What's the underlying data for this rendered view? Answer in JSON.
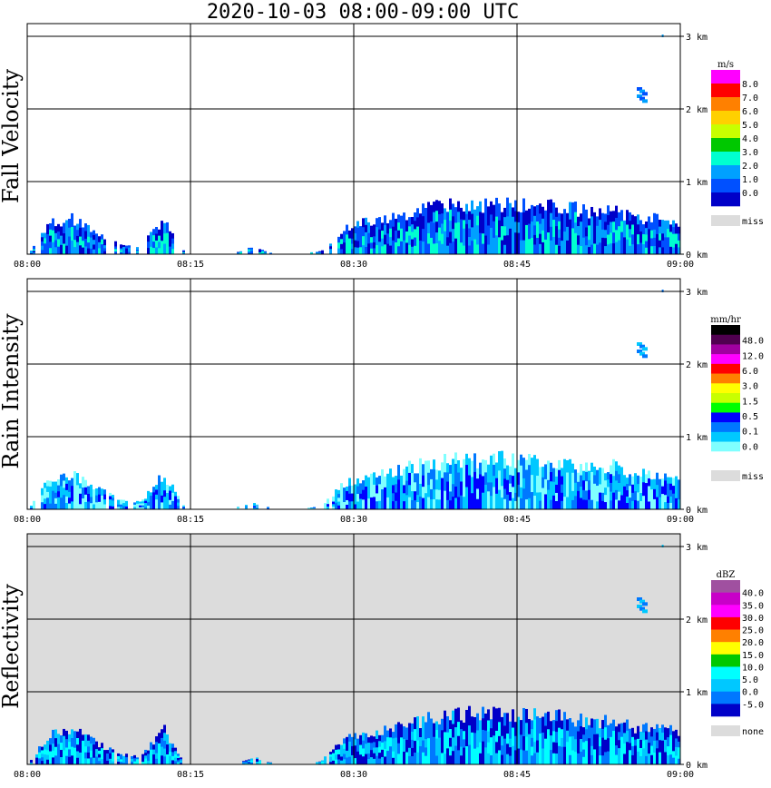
{
  "title": "2020-10-03   08:00-09:00 UTC",
  "chart_data": [
    {
      "type": "heatmap",
      "ylabel": "Fall Velocity",
      "x_ticks": [
        "08:00",
        "08:15",
        "08:30",
        "08:45",
        "09:00"
      ],
      "y_ticks": [
        "0 km",
        "1 km",
        "2 km",
        "3 km"
      ],
      "xlim": [
        "08:00",
        "09:00"
      ],
      "ylim_km": [
        0,
        3.0
      ],
      "background": "#ffffff",
      "colorbar": {
        "unit": "m/s",
        "labels": [
          "8.0",
          "7.0",
          "6.0",
          "5.0",
          "4.0",
          "3.0",
          "2.0",
          "1.0",
          "0.0"
        ],
        "colors": [
          "#ff00ff",
          "#ff0000",
          "#ff8000",
          "#ffd000",
          "#c8ff00",
          "#00c800",
          "#00ffd0",
          "#00a0ff",
          "#0050ff",
          "#0000c8"
        ],
        "miss_label": "miss",
        "miss_color": "#dcdcdc"
      },
      "echo": {
        "boundary_top_km": [
          0.0,
          0.45,
          0.5,
          0.3,
          0.15,
          0.1,
          0.5,
          0.0,
          0.0,
          0.0,
          0.1,
          0.0,
          0.0,
          0.05,
          0.35,
          0.45,
          0.5,
          0.6,
          0.65,
          0.7,
          0.7,
          0.7,
          0.7,
          0.7,
          0.65,
          0.6,
          0.6,
          0.5,
          0.5,
          0.45
        ],
        "dominant_colors": [
          "#0000c8",
          "#0050ff",
          "#00a0ff",
          "#00ffd0"
        ],
        "cell_top_km": [
          2.3,
          2.1
        ]
      }
    },
    {
      "type": "heatmap",
      "ylabel": "Rain Intensity",
      "x_ticks": [
        "08:00",
        "08:15",
        "08:30",
        "08:45",
        "09:00"
      ],
      "y_ticks": [
        "0 km",
        "1 km",
        "2 km",
        "3 km"
      ],
      "xlim": [
        "08:00",
        "09:00"
      ],
      "ylim_km": [
        0,
        3.0
      ],
      "background": "#ffffff",
      "colorbar": {
        "unit": "mm/hr",
        "labels": [
          "48.0",
          "12.0",
          "6.0",
          "3.0",
          "1.5",
          "0.5",
          "0.1",
          "0.0"
        ],
        "colors": [
          "#000000",
          "#500050",
          "#a000a0",
          "#ff00ff",
          "#ff0000",
          "#ff8000",
          "#ffff00",
          "#c8ff00",
          "#00ff00",
          "#0000ff",
          "#0078ff",
          "#00c8ff",
          "#80ffff",
          "#ffffff"
        ],
        "miss_label": "miss",
        "miss_color": "#dcdcdc"
      },
      "echo": {
        "boundary_top_km": [
          0.0,
          0.45,
          0.5,
          0.3,
          0.15,
          0.1,
          0.5,
          0.0,
          0.0,
          0.0,
          0.1,
          0.0,
          0.0,
          0.05,
          0.35,
          0.45,
          0.5,
          0.6,
          0.65,
          0.7,
          0.7,
          0.7,
          0.7,
          0.7,
          0.65,
          0.6,
          0.6,
          0.5,
          0.5,
          0.45
        ],
        "dominant_colors": [
          "#80ffff",
          "#00c8ff",
          "#0078ff",
          "#0000ff"
        ],
        "cell_top_km": [
          2.3,
          2.1
        ]
      }
    },
    {
      "type": "heatmap",
      "ylabel": "Reflectivity",
      "x_ticks": [
        "08:00",
        "08:15",
        "08:30",
        "08:45",
        "09:00"
      ],
      "y_ticks": [
        "0 km",
        "1 km",
        "2 km",
        "3 km"
      ],
      "xlim": [
        "08:00",
        "09:00"
      ],
      "ylim_km": [
        0,
        3.0
      ],
      "background": "#dcdcdc",
      "colorbar": {
        "unit": "dBZ",
        "labels": [
          "40.0",
          "35.0",
          "30.0",
          "25.0",
          "20.0",
          "15.0",
          "10.0",
          "5.0",
          "0.0",
          "-5.0"
        ],
        "colors": [
          "#a050a0",
          "#c800c8",
          "#ff00ff",
          "#ff0000",
          "#ff8000",
          "#ffff00",
          "#00c800",
          "#00ffff",
          "#00c8ff",
          "#0078ff",
          "#0000c8"
        ],
        "miss_label": "none",
        "miss_color": "#dcdcdc"
      },
      "echo": {
        "boundary_top_km": [
          0.0,
          0.45,
          0.5,
          0.3,
          0.15,
          0.1,
          0.5,
          0.0,
          0.0,
          0.0,
          0.1,
          0.0,
          0.0,
          0.05,
          0.35,
          0.45,
          0.5,
          0.6,
          0.65,
          0.7,
          0.7,
          0.7,
          0.7,
          0.7,
          0.65,
          0.6,
          0.6,
          0.5,
          0.5,
          0.45
        ],
        "dominant_colors": [
          "#0000c8",
          "#0078ff",
          "#00c8ff",
          "#00ffff"
        ],
        "cell_top_km": [
          2.3,
          2.1
        ]
      }
    }
  ]
}
